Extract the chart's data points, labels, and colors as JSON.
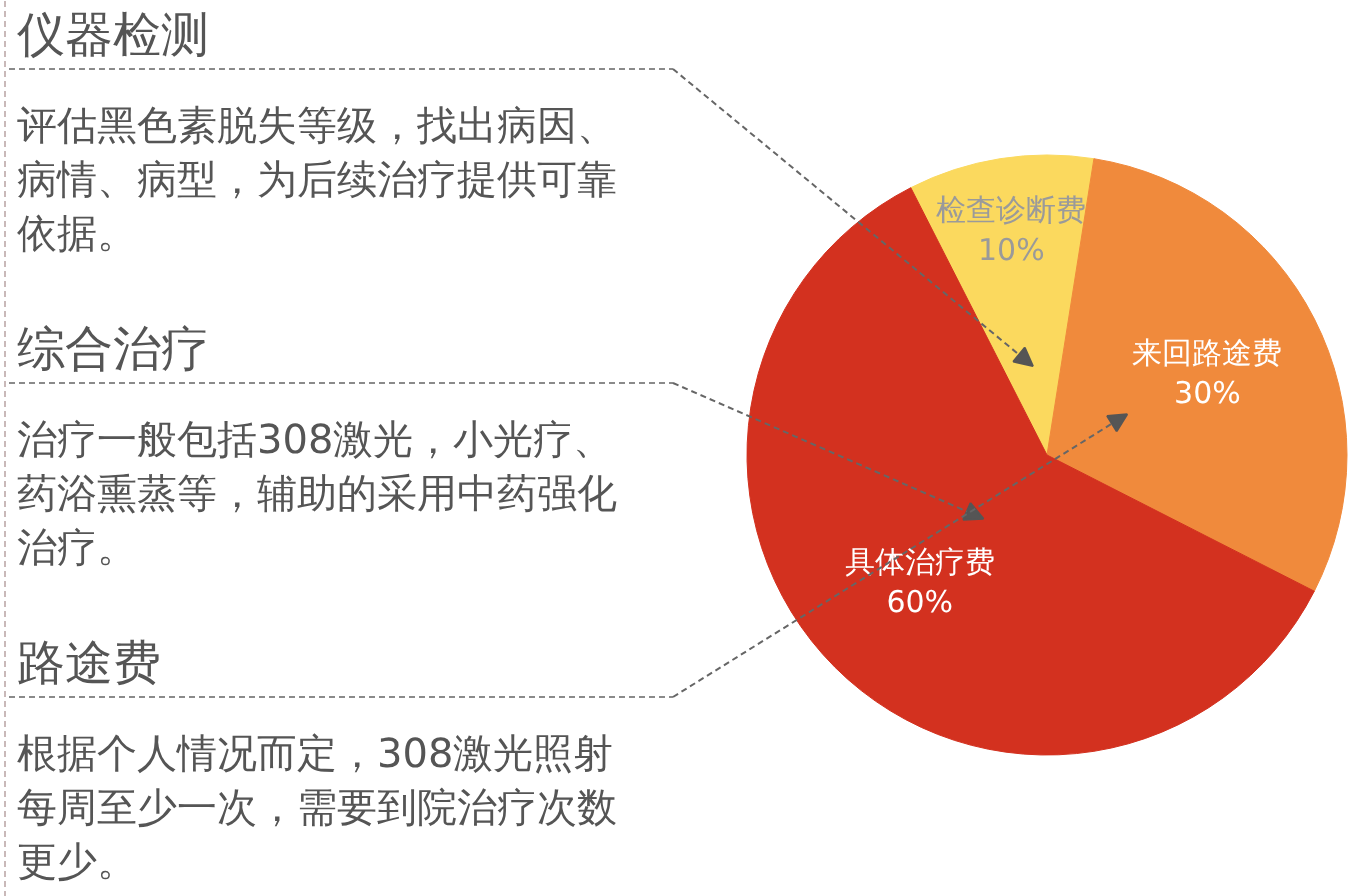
{
  "chart_data": {
    "type": "pie",
    "categories": [
      "检查诊断费",
      "来回路途费",
      "具体治疗费"
    ],
    "values": [
      10,
      30,
      60
    ],
    "colors": [
      "#fbd95e",
      "#f08a3c",
      "#d3311f"
    ],
    "value_labels": [
      "10%",
      "30%",
      "60%"
    ],
    "annotations": [
      {
        "text": "仪器检测",
        "x": "检查诊断费"
      },
      "评估黑色素脱失等级，找出病因、病情、病型，为后续治疗提供可靠依据。",
      {
        "text": "综合治疗",
        "x": "具体治疗费"
      },
      "治疗一般包括308激光，小光疗、药浴熏蒸等，辅助的采用中药强化治疗。",
      {
        "text": "路途费",
        "x": "来回路途费"
      },
      "根据个人情况而定，308激光照射每周至少一次，需要到院治疗次数更少。"
    ]
  }
}
